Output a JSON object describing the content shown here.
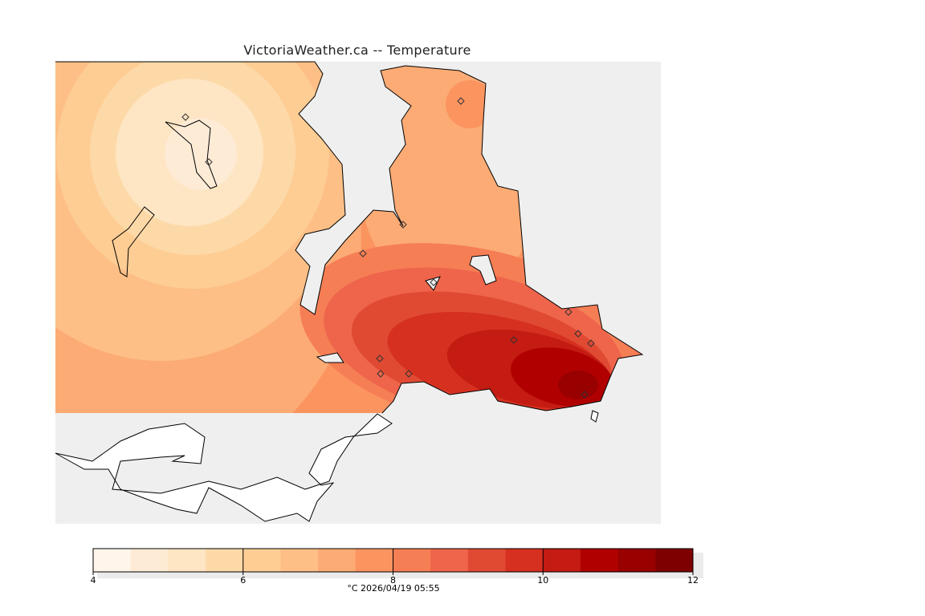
{
  "chart_data": {
    "type": "heatmap",
    "title": "VictoriaWeather.ca -- Temperature",
    "variable": "Temperature",
    "units": "°C",
    "timestamp": "2026/04/19 05:55",
    "caption": "°C  2026/04/19 05:55",
    "colorbar": {
      "range": [
        4,
        12
      ],
      "step": 0.5,
      "tick_labels": [
        "4",
        "6",
        "8",
        "10",
        "12"
      ],
      "tick_values": [
        4,
        6,
        8,
        10,
        12
      ],
      "colors": [
        "#fff5ea",
        "#feebd6",
        "#fee5c3",
        "#fdd9a8",
        "#fdcd94",
        "#fdbf86",
        "#fcab75",
        "#fc9460",
        "#f67e55",
        "#ee654b",
        "#e04a33",
        "#d63020",
        "#c41b12",
        "#b10000",
        "#990000",
        "#7f0000"
      ]
    },
    "field_summary": {
      "coldest_area": "north-west, around 4–4.5 °C",
      "warmest_area": "south-east (Victoria), around 10.5–11 °C"
    },
    "background_colors": {
      "water": "#efefef",
      "no_data_land": "#ffffff"
    }
  }
}
